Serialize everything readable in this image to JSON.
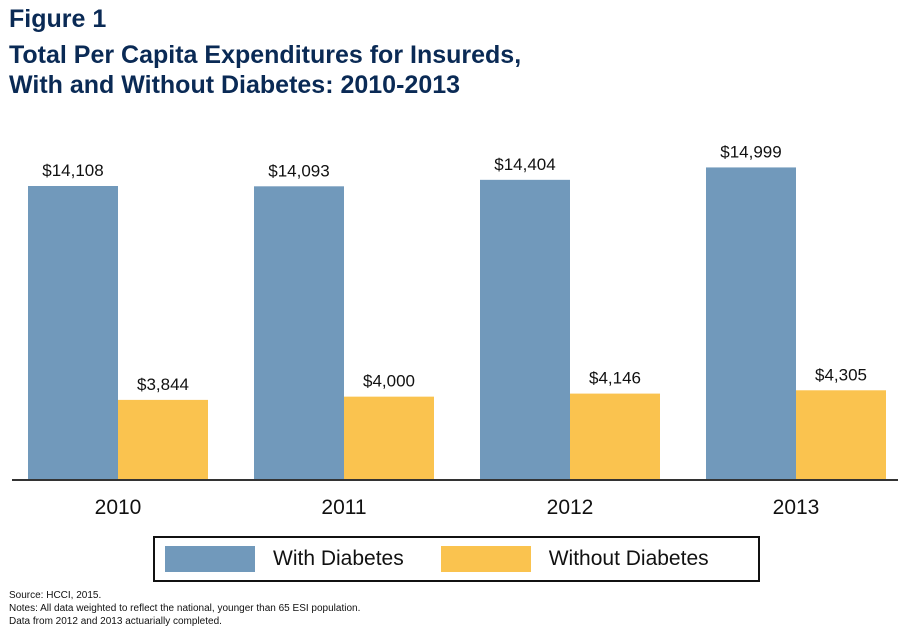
{
  "figure_label": "Figure 1",
  "title_lines": [
    "Total Per Capita Expenditures for Insureds,",
    "With and Without Diabetes: 2010-2013"
  ],
  "colors": {
    "with_diabetes": "#7199bb",
    "without_diabetes": "#fac34f",
    "title": "#0a2a55",
    "axis": "#333333"
  },
  "legend": {
    "with_label": "With Diabetes",
    "without_label": "Without Diabetes"
  },
  "notes": {
    "source": "Source: HCCI, 2015.",
    "note": "Notes: All data weighted to reflect the national, younger than 65 ESI population.",
    "note2": "Data from 2012 and 2013 actuarially completed."
  },
  "chart_data": {
    "type": "bar",
    "title": "Total Per Capita Expenditures for Insureds, With and Without Diabetes: 2010-2013",
    "categories": [
      "2010",
      "2011",
      "2012",
      "2013"
    ],
    "series": [
      {
        "name": "With Diabetes",
        "values": [
          14108,
          14093,
          14404,
          14999
        ],
        "labels": [
          "$14,108",
          "$14,093",
          "$14,404",
          "$14,999"
        ]
      },
      {
        "name": "Without Diabetes",
        "values": [
          3844,
          4000,
          4146,
          4305
        ],
        "labels": [
          "$3,844",
          "$4,000",
          "$4,146",
          "$4,305"
        ]
      }
    ],
    "xlabel": "",
    "ylabel": "",
    "ylim": [
      0,
      15000
    ],
    "grid": false,
    "legend_position": "bottom"
  }
}
